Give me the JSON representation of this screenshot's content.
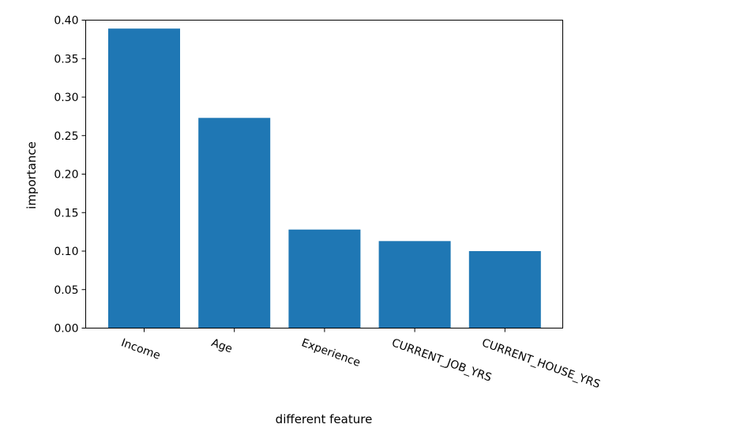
{
  "chart_data": {
    "type": "bar",
    "categories": [
      "Income",
      "Age",
      "Experience",
      "CURRENT_JOB_YRS",
      "CURRENT_HOUSE_YRS"
    ],
    "values": [
      0.389,
      0.273,
      0.128,
      0.113,
      0.1
    ],
    "xlabel": "different feature",
    "ylabel": "importance",
    "ylim": [
      0,
      0.4
    ],
    "yticks": [
      "0.00",
      "0.05",
      "0.10",
      "0.15",
      "0.20",
      "0.25",
      "0.30",
      "0.35",
      "0.40"
    ],
    "grid": false,
    "bar_color": "#1f77b4",
    "xtick_rotation": "slanted"
  }
}
